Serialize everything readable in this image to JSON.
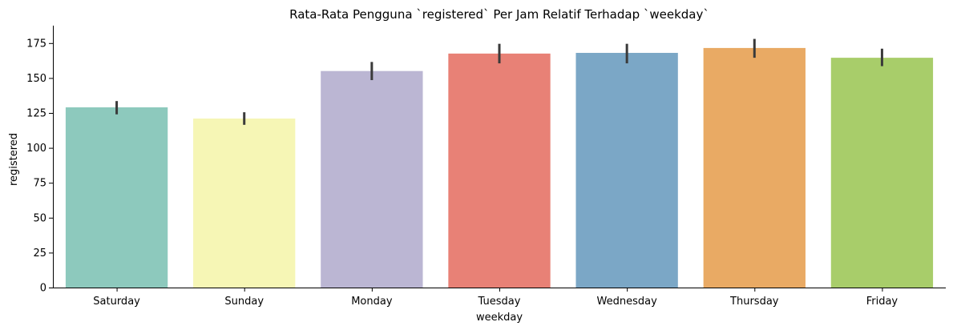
{
  "chart_data": {
    "type": "bar",
    "title": "Rata-Rata Pengguna `registered` Per Jam Relatif Terhadap `weekday`",
    "xlabel": "weekday",
    "ylabel": "registered",
    "categories": [
      "Saturday",
      "Sunday",
      "Monday",
      "Tuesday",
      "Wednesday",
      "Thursday",
      "Friday"
    ],
    "values": [
      129,
      121,
      155,
      167.5,
      168,
      171.5,
      164.5
    ],
    "error_low": [
      124,
      116.5,
      148.5,
      160.5,
      160.5,
      164.5,
      158.5
    ],
    "error_high": [
      133.5,
      125.5,
      161.5,
      174.5,
      174.5,
      178,
      171
    ],
    "colors": [
      "#8dc9bd",
      "#f6f6b5",
      "#bbb6d3",
      "#e88176",
      "#7ba7c6",
      "#e9aa64",
      "#a8cd6a"
    ],
    "error_color": "#3a3a3a",
    "yticks": [
      0,
      25,
      50,
      75,
      100,
      125,
      150,
      175
    ],
    "ylim": [
      0,
      187.5
    ],
    "grid": false,
    "legend": "none"
  }
}
